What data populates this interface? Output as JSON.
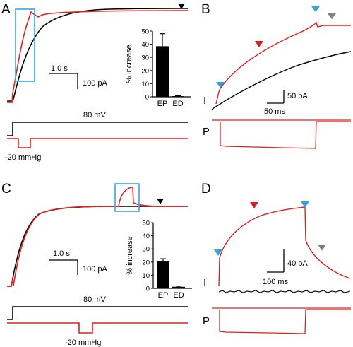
{
  "figure": {
    "panels": [
      "A",
      "B",
      "C",
      "D"
    ],
    "trace_labels": {
      "current": "I",
      "pressure": "P"
    }
  },
  "colors": {
    "control": "#000000",
    "pressure": "#e02020",
    "highlight": "#3aa7e0",
    "arrow_blue": "#29a8e0",
    "arrow_red": "#d81e1e",
    "arrow_gray": "#808080"
  },
  "scalebars": {
    "A": {
      "time": "1.0 s",
      "current": "100 pA"
    },
    "B": {
      "time": "50 ms",
      "current": "50 pA"
    },
    "C": {
      "time": "1.0 s",
      "current": "100 pA"
    },
    "D": {
      "time": "100 ms",
      "current": "40 pA"
    }
  },
  "protocol": {
    "voltage": "80 mV",
    "pressure": "-20 mmHg"
  },
  "chart_data": [
    {
      "type": "bar",
      "panel": "A",
      "categories": [
        "EP",
        "ED"
      ],
      "values": [
        38.5,
        0.5
      ],
      "errors": [
        9.5,
        0.3
      ],
      "ylabel": "% increase",
      "ylim": [
        0,
        50
      ],
      "yticks": [
        "0",
        "10",
        "20",
        "30",
        "40",
        "50"
      ]
    },
    {
      "type": "bar",
      "panel": "C",
      "categories": [
        "EP",
        "ED"
      ],
      "values": [
        20.5,
        1.2
      ],
      "errors": [
        2.0,
        0.5
      ],
      "ylabel": "% increase",
      "ylim": [
        0,
        50
      ],
      "yticks": [
        "0",
        "10",
        "20",
        "30",
        "40",
        "50"
      ]
    }
  ]
}
